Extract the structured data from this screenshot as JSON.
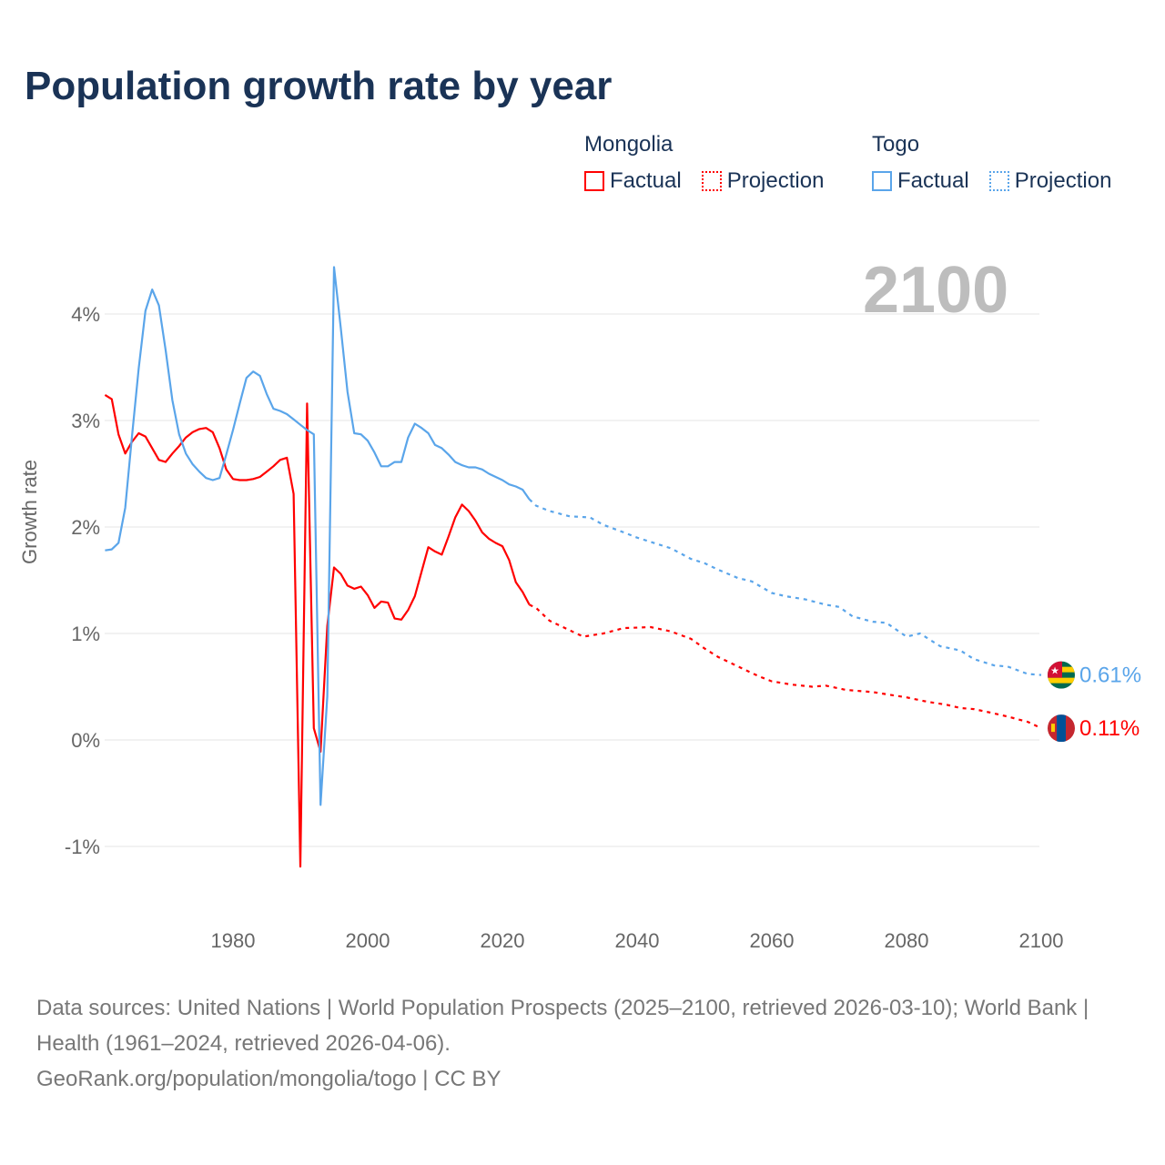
{
  "title": "Population growth rate by year",
  "big_year": "2100",
  "legend": [
    {
      "country": "Mongolia",
      "factual": "Factual",
      "projection": "Projection",
      "color": "#ff0000"
    },
    {
      "country": "Togo",
      "factual": "Factual",
      "projection": "Projection",
      "color": "#5aa5ea"
    }
  ],
  "footer": {
    "sources": "Data sources: United Nations | World Population Prospects (2025–2100, retrieved 2026-03-10); World Bank | Health (1961–2024, retrieved 2026-04-06).",
    "credit": "GeoRank.org/population/mongolia/togo | CC BY"
  },
  "chart_data": {
    "type": "line",
    "title": "Population growth rate by year",
    "xlabel": "",
    "ylabel": "Growth rate",
    "xlim": [
      1961,
      2100
    ],
    "ylim": [
      -1.5,
      4.6
    ],
    "x_ticks": [
      1980,
      2000,
      2020,
      2040,
      2060,
      2080,
      2100
    ],
    "y_ticks": [
      -1,
      0,
      1,
      2,
      3,
      4
    ],
    "y_tick_labels": [
      "-1%",
      "0%",
      "1%",
      "2%",
      "3%",
      "4%"
    ],
    "grid": true,
    "end_labels": {
      "Togo": "0.61%",
      "Mongolia": "0.11%"
    },
    "series": [
      {
        "name": "Mongolia",
        "kind": "factual",
        "color": "#ff0000",
        "start": 1961,
        "values": [
          3.24,
          3.2,
          2.87,
          2.69,
          2.8,
          2.88,
          2.85,
          2.74,
          2.63,
          2.61,
          2.69,
          2.76,
          2.84,
          2.89,
          2.92,
          2.93,
          2.89,
          2.74,
          2.54,
          2.45,
          2.44,
          2.44,
          2.45,
          2.47,
          2.52,
          2.57,
          2.63,
          2.65,
          2.31,
          -1.19,
          3.16,
          0.11,
          -0.11,
          1.07,
          1.62,
          1.56,
          1.45,
          1.42,
          1.44,
          1.36,
          1.24,
          1.3,
          1.29,
          1.14,
          1.13,
          1.22,
          1.35,
          1.58,
          1.81,
          1.77,
          1.74,
          1.91,
          2.09,
          2.21,
          2.15,
          2.06,
          1.95,
          1.89,
          1.85,
          1.82,
          1.69,
          1.48,
          1.39,
          1.27
        ]
      },
      {
        "name": "Mongolia",
        "kind": "projection",
        "color": "#ff0000",
        "points": [
          [
            2024,
            1.27
          ],
          [
            2025,
            1.24
          ],
          [
            2027,
            1.12
          ],
          [
            2030,
            1.03
          ],
          [
            2032,
            0.97
          ],
          [
            2035,
            1.0
          ],
          [
            2038,
            1.05
          ],
          [
            2042,
            1.06
          ],
          [
            2045,
            1.02
          ],
          [
            2048,
            0.95
          ],
          [
            2050,
            0.86
          ],
          [
            2052,
            0.78
          ],
          [
            2055,
            0.69
          ],
          [
            2058,
            0.6
          ],
          [
            2060,
            0.55
          ],
          [
            2063,
            0.52
          ],
          [
            2066,
            0.5
          ],
          [
            2068,
            0.51
          ],
          [
            2071,
            0.47
          ],
          [
            2075,
            0.45
          ],
          [
            2078,
            0.42
          ],
          [
            2080,
            0.4
          ],
          [
            2083,
            0.36
          ],
          [
            2086,
            0.33
          ],
          [
            2088,
            0.3
          ],
          [
            2090,
            0.29
          ],
          [
            2093,
            0.25
          ],
          [
            2095,
            0.22
          ],
          [
            2098,
            0.17
          ],
          [
            2100,
            0.11
          ]
        ]
      },
      {
        "name": "Togo",
        "kind": "factual",
        "color": "#5aa5ea",
        "start": 1961,
        "values": [
          1.78,
          1.79,
          1.85,
          2.18,
          2.85,
          3.49,
          4.03,
          4.23,
          4.08,
          3.66,
          3.19,
          2.87,
          2.69,
          2.59,
          2.52,
          2.46,
          2.44,
          2.46,
          2.68,
          2.91,
          3.16,
          3.4,
          3.46,
          3.42,
          3.25,
          3.11,
          3.09,
          3.06,
          3.01,
          2.96,
          2.91,
          2.87,
          -0.61,
          0.41,
          4.44,
          3.87,
          3.27,
          2.88,
          2.87,
          2.81,
          2.7,
          2.57,
          2.57,
          2.61,
          2.61,
          2.84,
          2.97,
          2.93,
          2.88,
          2.77,
          2.74,
          2.68,
          2.61,
          2.58,
          2.56,
          2.56,
          2.54,
          2.5,
          2.47,
          2.44,
          2.4,
          2.38,
          2.35,
          2.26
        ]
      },
      {
        "name": "Togo",
        "kind": "projection",
        "color": "#5aa5ea",
        "points": [
          [
            2024,
            2.26
          ],
          [
            2025,
            2.2
          ],
          [
            2027,
            2.15
          ],
          [
            2030,
            2.1
          ],
          [
            2033,
            2.09
          ],
          [
            2035,
            2.02
          ],
          [
            2038,
            1.95
          ],
          [
            2040,
            1.9
          ],
          [
            2043,
            1.84
          ],
          [
            2045,
            1.8
          ],
          [
            2048,
            1.7
          ],
          [
            2050,
            1.66
          ],
          [
            2052,
            1.6
          ],
          [
            2055,
            1.52
          ],
          [
            2057,
            1.49
          ],
          [
            2060,
            1.38
          ],
          [
            2062,
            1.35
          ],
          [
            2065,
            1.32
          ],
          [
            2068,
            1.27
          ],
          [
            2070,
            1.25
          ],
          [
            2072,
            1.16
          ],
          [
            2075,
            1.11
          ],
          [
            2077,
            1.1
          ],
          [
            2080,
            0.97
          ],
          [
            2082,
            1.0
          ],
          [
            2085,
            0.88
          ],
          [
            2088,
            0.84
          ],
          [
            2090,
            0.76
          ],
          [
            2093,
            0.7
          ],
          [
            2095,
            0.69
          ],
          [
            2098,
            0.62
          ],
          [
            2100,
            0.61
          ]
        ]
      }
    ]
  }
}
